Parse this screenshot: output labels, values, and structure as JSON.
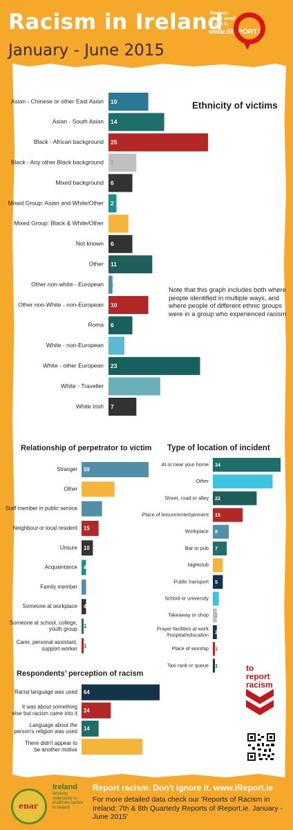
{
  "header": {
    "title": "Racism in Ireland",
    "subtitle": "January - June 2015"
  },
  "logo": {
    "tagline": "Racism: see it send it end it.",
    "brand_prefix": "www.",
    "brand_name": "iREPORT",
    "brand_suffix": ".ie"
  },
  "colors": {
    "background": "#f5a82a",
    "red": "#b32826",
    "teal": "#1e6e6b",
    "dark": "#333333",
    "blue": "#4f8fa8",
    "light_blue": "#5bb9d3",
    "gold": "#f3b53a",
    "grey": "#c0c0c0",
    "navy": "#14344a"
  },
  "chart_data": [
    {
      "type": "bar",
      "title": "Ethnicity of victims",
      "orientation": "horizontal",
      "categories": [
        "Asian - Chinese or other East Asian",
        "Asian - South Asian",
        "Black - African background",
        "Black - Any other Black background",
        "Mixed background",
        "Mixed Group: Asian and White/Other",
        "Mixed Group: Black & White/Other",
        "Not known",
        "Other",
        "Other non-white - European",
        "Other non-White - non-European",
        "Roma",
        "White - non-European",
        "White - other European",
        "White - Traveller",
        "White Irish"
      ],
      "values": [
        10,
        14,
        25,
        7,
        6,
        2,
        5,
        6,
        11,
        1,
        10,
        6,
        4,
        23,
        13,
        7
      ],
      "bar_colors": [
        "#2b7a95",
        "#1e6e6b",
        "#b32826",
        "#c0c0c0",
        "#333333",
        "#17918e",
        "#f3b53a",
        "#333333",
        "#1e5f5c",
        "#4f8fa8",
        "#b32826",
        "#17605e",
        "#5bb9d3",
        "#17605e",
        "#6ab0bb",
        "#333333"
      ],
      "value_text_colors": [
        "#fff",
        "#fff",
        "#fff",
        "#999",
        "#fff",
        "#fff",
        "#f3b53a",
        "#fff",
        "#fff",
        "#4f8fa8",
        "#fff",
        "#fff",
        "#5bb9d3",
        "#fff",
        "#6ab0bb",
        "#fff"
      ],
      "xlim": [
        0,
        25
      ]
    },
    {
      "type": "bar",
      "title": "Relationship of perpetrator to victim",
      "orientation": "horizontal",
      "categories": [
        "Stranger",
        "Other",
        "Staff member in public service",
        "Neighbour or local resident",
        "Unsure",
        "Acquaintance",
        "Family member",
        "Someone at workplace",
        "Someone at school, college, youth group",
        "Carer, personal assistant, support worker"
      ],
      "values": [
        59,
        29,
        18,
        15,
        10,
        4,
        4,
        4,
        1,
        1
      ],
      "bar_colors": [
        "#4f8fa8",
        "#f3b53a",
        "#4f8fa8",
        "#b32826",
        "#333333",
        "#17918e",
        "#4f8fa8",
        "#333333",
        "#1e6e6b",
        "#b32826"
      ],
      "value_text_colors": [
        "#fff",
        "#f3b53a",
        "#4f8fa8",
        "#fff",
        "#fff",
        "#fff",
        "#4f8fa8",
        "#fff",
        "#1e6e6b",
        "#b32826"
      ],
      "xlim": [
        0,
        59
      ]
    },
    {
      "type": "bar",
      "title": "Type of location of incident",
      "orientation": "horizontal",
      "categories": [
        "At or near your home",
        "Other",
        "Street, road or alley",
        "Place of leisure/entertainment",
        "Workplace",
        "Bar or pub",
        "Nightclub",
        "Public transport",
        "School or university",
        "Takeaway or shop",
        "Prayer facilities at work /hospital/education",
        "Place of worship",
        "Taxi rank or queue"
      ],
      "values": [
        34,
        30,
        22,
        15,
        8,
        7,
        5,
        5,
        3,
        2,
        2,
        1,
        1
      ],
      "bar_colors": [
        "#1e6e6b",
        "#3cc3df",
        "#1e5f5c",
        "#b32826",
        "#4f8fa8",
        "#1e6e6b",
        "#f3b53a",
        "#14344a",
        "#3cc3df",
        "#c0c0c0",
        "#14344a",
        "#b32826",
        "#14344a"
      ],
      "value_text_colors": [
        "#fff",
        "#3cc3df",
        "#fff",
        "#fff",
        "#fff",
        "#fff",
        "#f3b53a",
        "#fff",
        "#3cc3df",
        "#999",
        "#fff",
        "#b32826",
        "#14344a"
      ],
      "xlim": [
        0,
        34
      ]
    },
    {
      "type": "bar",
      "title": "Respondents’ perception of racism",
      "orientation": "horizontal",
      "categories": [
        "Racist language was used",
        "It was about something else but racism came into it",
        "Language about the person's religion was used",
        "There didn't appear to be another motive"
      ],
      "values": [
        64,
        24,
        14,
        50
      ],
      "bar_colors": [
        "#14344a",
        "#b32826",
        "#1e6e6b",
        "#f3b53a"
      ],
      "value_text_colors": [
        "#fff",
        "#fff",
        "#fff",
        "#f3b53a"
      ],
      "xlim": [
        0,
        64
      ]
    }
  ],
  "note": "Note that this graph includes both where people identified in multiple ways, and where people of different ethnic groups were in a group who experienced racism",
  "report_mark": {
    "words": [
      "to",
      "report",
      "racism"
    ]
  },
  "footer": {
    "org_name": "Ireland",
    "org_tagline": "Working collectively to eradicate racism in Ireland",
    "badge_text": "enar",
    "slogan": "Report racism. Don't ignore it. ",
    "slogan_url": "www.iReport.ie",
    "body": "For more detailed data check our 'Reports of Racism in Ireland: 7th & 8th Quarterly Reports of iReport.ie. January - June 2015'"
  }
}
